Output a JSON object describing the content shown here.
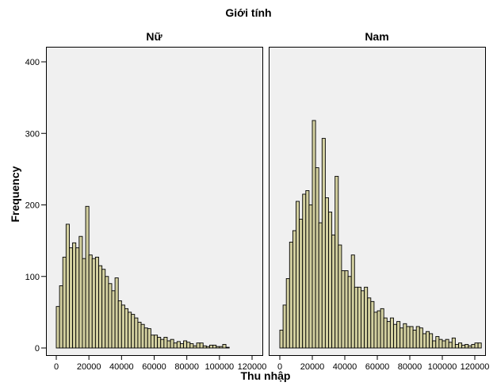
{
  "chart": {
    "title": "Giới tính",
    "ylabel": "Frequency",
    "xlabel": "Thu nhập",
    "bar_fill": "#d3d0a0",
    "bar_stroke": "#000000",
    "panel_bg": "#f0f0f0"
  },
  "chart_data": [
    {
      "type": "bar",
      "title": "Nữ",
      "xlabel": "Thu nhập",
      "ylabel": "Frequency",
      "bin_width": 2000,
      "bin_start": 0,
      "xlim": [
        0,
        120000
      ],
      "ylim": [
        0,
        420
      ],
      "xticks": [
        0,
        20000,
        40000,
        60000,
        80000,
        100000,
        120000
      ],
      "yticks": [
        0,
        100,
        200,
        300,
        400
      ],
      "grid": false,
      "values": [
        58,
        87,
        127,
        173,
        140,
        147,
        140,
        156,
        125,
        198,
        130,
        125,
        127,
        115,
        110,
        100,
        90,
        80,
        98,
        66,
        60,
        55,
        50,
        47,
        42,
        36,
        33,
        28,
        27,
        18,
        18,
        15,
        12,
        15,
        10,
        12,
        7,
        9,
        6,
        10,
        8,
        6,
        3,
        7,
        7,
        3,
        2,
        4,
        4,
        2,
        2,
        5,
        1
      ]
    },
    {
      "type": "bar",
      "title": "Nam",
      "xlabel": "Thu nhập",
      "ylabel": "Frequency",
      "bin_width": 2000,
      "bin_start": 0,
      "xlim": [
        0,
        120000
      ],
      "ylim": [
        0,
        420
      ],
      "xticks": [
        0,
        20000,
        40000,
        60000,
        80000,
        100000,
        120000
      ],
      "yticks": [
        0,
        100,
        200,
        300,
        400
      ],
      "grid": false,
      "values": [
        25,
        60,
        97,
        148,
        164,
        205,
        180,
        215,
        220,
        200,
        318,
        252,
        175,
        293,
        210,
        190,
        158,
        240,
        144,
        108,
        108,
        100,
        130,
        85,
        85,
        80,
        85,
        70,
        65,
        50,
        52,
        55,
        42,
        37,
        42,
        33,
        37,
        28,
        34,
        30,
        30,
        25,
        30,
        28,
        20,
        23,
        20,
        10,
        16,
        12,
        10,
        12,
        8,
        14,
        5,
        7,
        4,
        5,
        3,
        5,
        7,
        7
      ]
    }
  ]
}
